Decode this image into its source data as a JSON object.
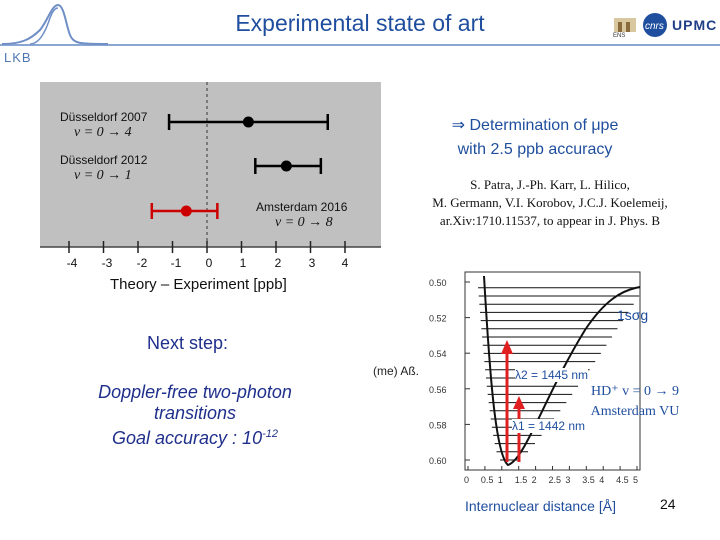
{
  "header": {
    "title": "Experimental state of art",
    "lab_label": "LKB",
    "logos": [
      "ens-logo",
      "cnrs-logo",
      "upmc-logo"
    ],
    "upmc_text": "UPMC",
    "cnrs_text": "cnrs"
  },
  "chart_data": {
    "type": "scatter",
    "xlabel": "Theory – Experiment [ppb]",
    "xlim": [
      -4,
      4
    ],
    "x_ticks": [
      "-4",
      "-3",
      "-2",
      "-1",
      "0",
      "1",
      "2",
      "3",
      "4"
    ],
    "reference_line": 0,
    "points": [
      {
        "label": "Düsseldorf 2007",
        "transition": "v = 0 → 4",
        "value": 1.2,
        "err_low": -1.1,
        "err_high": 3.5,
        "color": "#000000"
      },
      {
        "label": "Düsseldorf 2012",
        "transition": "v = 0 → 1",
        "value": 2.3,
        "err_low": 1.4,
        "err_high": 3.3,
        "color": "#000000"
      },
      {
        "label": "Amsterdam 2016",
        "transition": "v = 0 → 8",
        "value": -0.6,
        "err_low": -1.6,
        "err_high": 0.3,
        "color": "#cc0000"
      }
    ]
  },
  "determination": {
    "line1": "⇒ Determination of μpe",
    "line2": "with 2.5 ppb accuracy"
  },
  "reference": {
    "line1": "S. Patra, J.-Ph. Karr, L. Hilico,",
    "line2": "M. Germann, V.I. Korobov, J.C.J. Koelemeij,",
    "line3": "ar.Xiv:1710.11537, to appear in J. Phys. B"
  },
  "next_step": {
    "label": "Next step:",
    "line1": "Doppler-free two-photon",
    "line2": "transitions",
    "line3": "Goal  accuracy : 10",
    "exponent": "-12"
  },
  "potential": {
    "y_ticks": [
      "0.50",
      "0.52",
      "0.54",
      "0.56",
      "0.58",
      "0.60"
    ],
    "x_ticks": [
      "0",
      "0.5",
      "1",
      "1.5",
      "2",
      "2.5",
      "3",
      "3.5",
      "4",
      "4.5",
      "5"
    ],
    "xlabel": "Internuclear distance [Å]",
    "ylabel_fragment": "(me) Aß.",
    "state_label": "1sσg",
    "lambda1": "λ2 = 1445 nm",
    "lambda2": "λ1 = 1442 nm",
    "molecule_line1": "HD⁺ v = 0 → 9",
    "molecule_line2": "Amsterdam VU",
    "arrow_color": "#e02020"
  },
  "page_number": "24"
}
